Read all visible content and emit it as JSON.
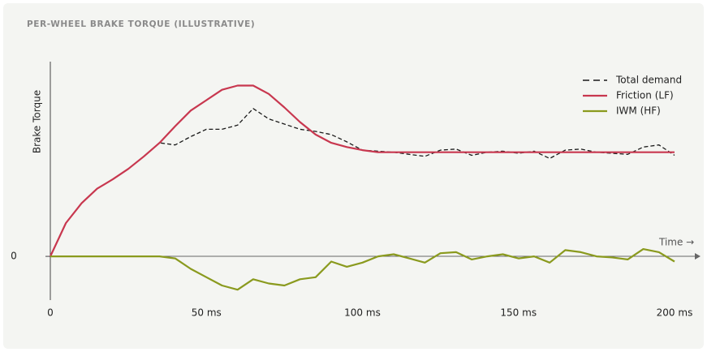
{
  "chart_data": {
    "type": "line",
    "title": "PER-WHEEL BRAKE TORQUE (ILLUSTRATIVE)",
    "y_label": "Brake Torque",
    "x_label": "Time →",
    "x": [
      0,
      5,
      10,
      15,
      20,
      25,
      30,
      35,
      40,
      45,
      50,
      55,
      60,
      65,
      70,
      75,
      80,
      85,
      90,
      95,
      100,
      105,
      110,
      115,
      120,
      125,
      130,
      135,
      140,
      145,
      150,
      155,
      160,
      165,
      170,
      175,
      180,
      185,
      190,
      195,
      200
    ],
    "xlim": [
      0,
      200
    ],
    "xticks": [
      0,
      {
        "value": 50,
        "label": "50 ms"
      },
      {
        "value": 100,
        "label": "100 ms"
      },
      {
        "value": 150,
        "label": "150 ms"
      },
      {
        "value": 200,
        "label": "200 ms"
      }
    ],
    "ylim": [
      -0.42,
      1.87
    ],
    "yticks": [
      0
    ],
    "legend": "top-right",
    "series": [
      {
        "name": "Total demand",
        "color": "#1a1a1a",
        "style": "dashed",
        "values": [
          0,
          0.32,
          0.51,
          0.65,
          0.74,
          0.84,
          0.96,
          1.09,
          1.07,
          1.15,
          1.22,
          1.22,
          1.26,
          1.42,
          1.32,
          1.27,
          1.22,
          1.2,
          1.17,
          1.1,
          1.02,
          1.01,
          1.0,
          0.98,
          0.96,
          1.02,
          1.03,
          0.97,
          1.0,
          1.01,
          0.99,
          1.01,
          0.94,
          1.02,
          1.03,
          1.0,
          0.99,
          0.98,
          1.05,
          1.07,
          0.97
        ]
      },
      {
        "name": "Friction (LF)",
        "color": "#c8374f",
        "style": "solid",
        "values": [
          0,
          0.32,
          0.51,
          0.65,
          0.74,
          0.84,
          0.96,
          1.09,
          1.25,
          1.4,
          1.5,
          1.6,
          1.64,
          1.64,
          1.56,
          1.43,
          1.29,
          1.17,
          1.09,
          1.05,
          1.02,
          1.0,
          1.0,
          1.0,
          1.0,
          1.0,
          1.0,
          1.0,
          1.0,
          1.0,
          1.0,
          1.0,
          1.0,
          1.0,
          1.0,
          1.0,
          1.0,
          1.0,
          1.0,
          1.0,
          1.0
        ]
      },
      {
        "name": "IWM (HF)",
        "color": "#8a9a1e",
        "style": "solid",
        "values": [
          0,
          0,
          0,
          0,
          0,
          0,
          0,
          0,
          -0.02,
          -0.12,
          -0.2,
          -0.28,
          -0.32,
          -0.22,
          -0.26,
          -0.28,
          -0.22,
          -0.2,
          -0.05,
          -0.1,
          -0.06,
          0.0,
          0.02,
          -0.02,
          -0.06,
          0.03,
          0.04,
          -0.03,
          0.0,
          0.02,
          -0.02,
          0.0,
          -0.06,
          0.06,
          0.04,
          0.0,
          -0.01,
          -0.03,
          0.07,
          0.04,
          -0.05
        ]
      }
    ]
  }
}
